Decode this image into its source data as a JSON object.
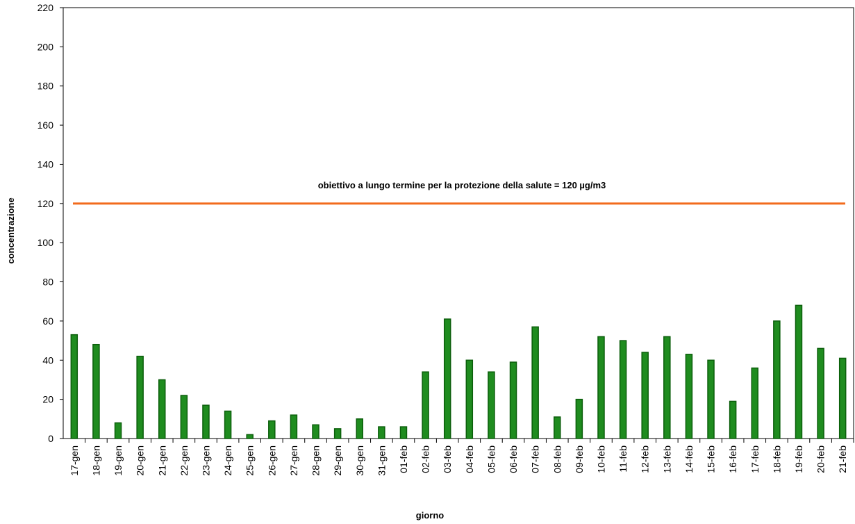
{
  "chart_data": {
    "type": "bar",
    "x_label": "giorno",
    "y_label": "concentrazione",
    "categories": [
      "17-gen",
      "18-gen",
      "19-gen",
      "20-gen",
      "21-gen",
      "22-gen",
      "23-gen",
      "24-gen",
      "25-gen",
      "26-gen",
      "27-gen",
      "28-gen",
      "29-gen",
      "30-gen",
      "31-gen",
      "01-feb",
      "02-feb",
      "03-feb",
      "04-feb",
      "05-feb",
      "06-feb",
      "07-feb",
      "08-feb",
      "09-feb",
      "10-feb",
      "11-feb",
      "12-feb",
      "13-feb",
      "14-feb",
      "15-feb",
      "16-feb",
      "17-feb",
      "18-feb",
      "19-feb",
      "20-feb",
      "21-feb"
    ],
    "values": [
      53,
      48,
      8,
      42,
      30,
      22,
      17,
      14,
      2,
      9,
      12,
      7,
      5,
      10,
      6,
      6,
      34,
      61,
      40,
      34,
      39,
      57,
      11,
      20,
      52,
      50,
      44,
      52,
      43,
      40,
      19,
      36,
      60,
      68,
      46,
      41
    ],
    "color": "#1f8c1f",
    "ylim": [
      0,
      220
    ],
    "yticks": [
      0,
      20,
      40,
      60,
      80,
      100,
      120,
      140,
      160,
      180,
      200,
      220
    ],
    "grid": false,
    "threshold": {
      "value": 120,
      "label": "obiettivo a lungo termine per la protezione della salute = 120 µg/m3",
      "color": "#f26b1d"
    }
  }
}
